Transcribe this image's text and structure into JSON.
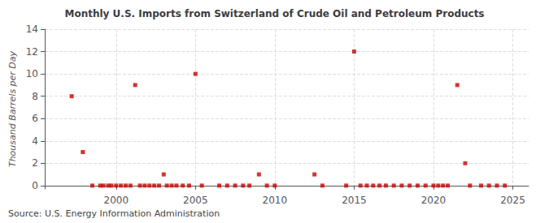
{
  "chart_data": {
    "type": "scatter",
    "title": "Monthly U.S. Imports from Switzerland of Crude Oil and Petroleum Products",
    "ylabel": "Thousand Barrels per Day",
    "annotation": "Source: U.S. Energy Information Administration",
    "color": "#cc0000",
    "marker": "square",
    "grid": true,
    "xlim": [
      1995.5,
      2026
    ],
    "ylim": [
      -0.3,
      14
    ],
    "xticks": [
      2000,
      2005,
      2010,
      2015,
      2020,
      2025
    ],
    "yticks": [
      0,
      2,
      4,
      6,
      8,
      10,
      12,
      14
    ],
    "x": [
      1997.2,
      1997.9,
      1998.5,
      1999.0,
      1999.2,
      1999.5,
      1999.7,
      2000.0,
      2000.3,
      2000.6,
      2000.9,
      2001.2,
      2001.5,
      2001.8,
      2002.1,
      2002.4,
      2002.7,
      2003.0,
      2003.2,
      2003.5,
      2003.8,
      2004.2,
      2004.6,
      2005.0,
      2005.4,
      2006.5,
      2007.0,
      2007.5,
      2008.0,
      2008.4,
      2009.0,
      2009.5,
      2010.0,
      2012.5,
      2013.0,
      2014.5,
      2015.0,
      2015.4,
      2015.8,
      2016.2,
      2016.6,
      2017.0,
      2017.5,
      2018.0,
      2018.5,
      2019.0,
      2019.5,
      2020.0,
      2020.3,
      2020.6,
      2020.9,
      2021.5,
      2022.0,
      2022.3,
      2023.0,
      2023.5,
      2024.0,
      2024.5
    ],
    "values": [
      8.0,
      3.0,
      0.0,
      0.0,
      0.0,
      0.0,
      0.0,
      0.0,
      0.0,
      0.0,
      0.0,
      9.0,
      0.0,
      0.0,
      0.0,
      0.0,
      0.0,
      1.0,
      0.0,
      0.0,
      0.0,
      0.0,
      0.0,
      10.0,
      0.0,
      0.0,
      0.0,
      0.0,
      0.0,
      0.0,
      1.0,
      0.0,
      0.0,
      1.0,
      0.0,
      0.0,
      12.0,
      0.0,
      0.0,
      0.0,
      0.0,
      0.0,
      0.0,
      0.0,
      0.0,
      0.0,
      0.0,
      0.0,
      0.0,
      0.0,
      0.0,
      9.0,
      2.0,
      0.0,
      0.0,
      0.0,
      0.0,
      0.0
    ]
  }
}
